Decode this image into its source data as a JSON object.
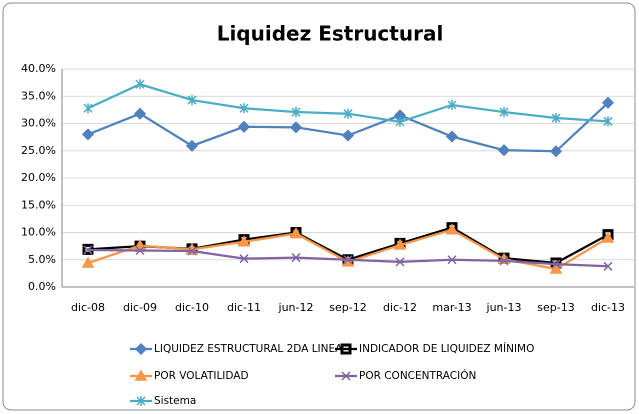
{
  "chart_data": {
    "type": "line",
    "title": "Liquidez Estructural",
    "categories": [
      "dic-08",
      "dic-09",
      "dic-10",
      "dic-11",
      "jun-12",
      "sep-12",
      "dic-12",
      "mar-13",
      "jun-13",
      "sep-13",
      "dic-13"
    ],
    "series": [
      {
        "name": "LIQUIDEZ ESTRUCTURAL 2DA LINEA",
        "color": "#4f81bd",
        "values": [
          28.0,
          31.8,
          25.9,
          29.4,
          29.3,
          27.8,
          31.5,
          27.6,
          25.1,
          24.9,
          33.8
        ]
      },
      {
        "name": "INDICADOR DE LIQUIDEZ MÍNIMO",
        "color": "#000000",
        "values": [
          6.9,
          7.5,
          7.0,
          8.7,
          10.0,
          5.0,
          8.0,
          10.9,
          5.3,
          4.4,
          9.6
        ]
      },
      {
        "name": "POR VOLATILIDAD",
        "color": "#f79646",
        "values": [
          4.4,
          7.6,
          6.9,
          8.3,
          9.8,
          4.6,
          7.7,
          10.5,
          5.1,
          3.3,
          9.0
        ]
      },
      {
        "name": "POR CONCENTRACIÓN",
        "color": "#8064a2",
        "values": [
          6.8,
          6.7,
          6.6,
          5.2,
          5.4,
          5.0,
          4.6,
          5.0,
          4.8,
          4.2,
          3.8
        ]
      },
      {
        "name": "Sistema",
        "color": "#4bacc6",
        "values": [
          32.8,
          37.2,
          34.3,
          32.8,
          32.1,
          31.8,
          30.3,
          33.4,
          32.1,
          31.0,
          30.4
        ]
      }
    ],
    "ylim": [
      0,
      40
    ],
    "yticks": [
      {
        "value": 0,
        "label": "0.0%"
      },
      {
        "value": 5,
        "label": "5.0%"
      },
      {
        "value": 10,
        "label": "10.0%"
      },
      {
        "value": 15,
        "label": "15.0%"
      },
      {
        "value": 20,
        "label": "20.0%"
      },
      {
        "value": 25,
        "label": "25.0%"
      },
      {
        "value": 30,
        "label": "30.0%"
      },
      {
        "value": 35,
        "label": "35.0%"
      },
      {
        "value": 40,
        "label": "40.0%"
      }
    ],
    "grid": true
  }
}
